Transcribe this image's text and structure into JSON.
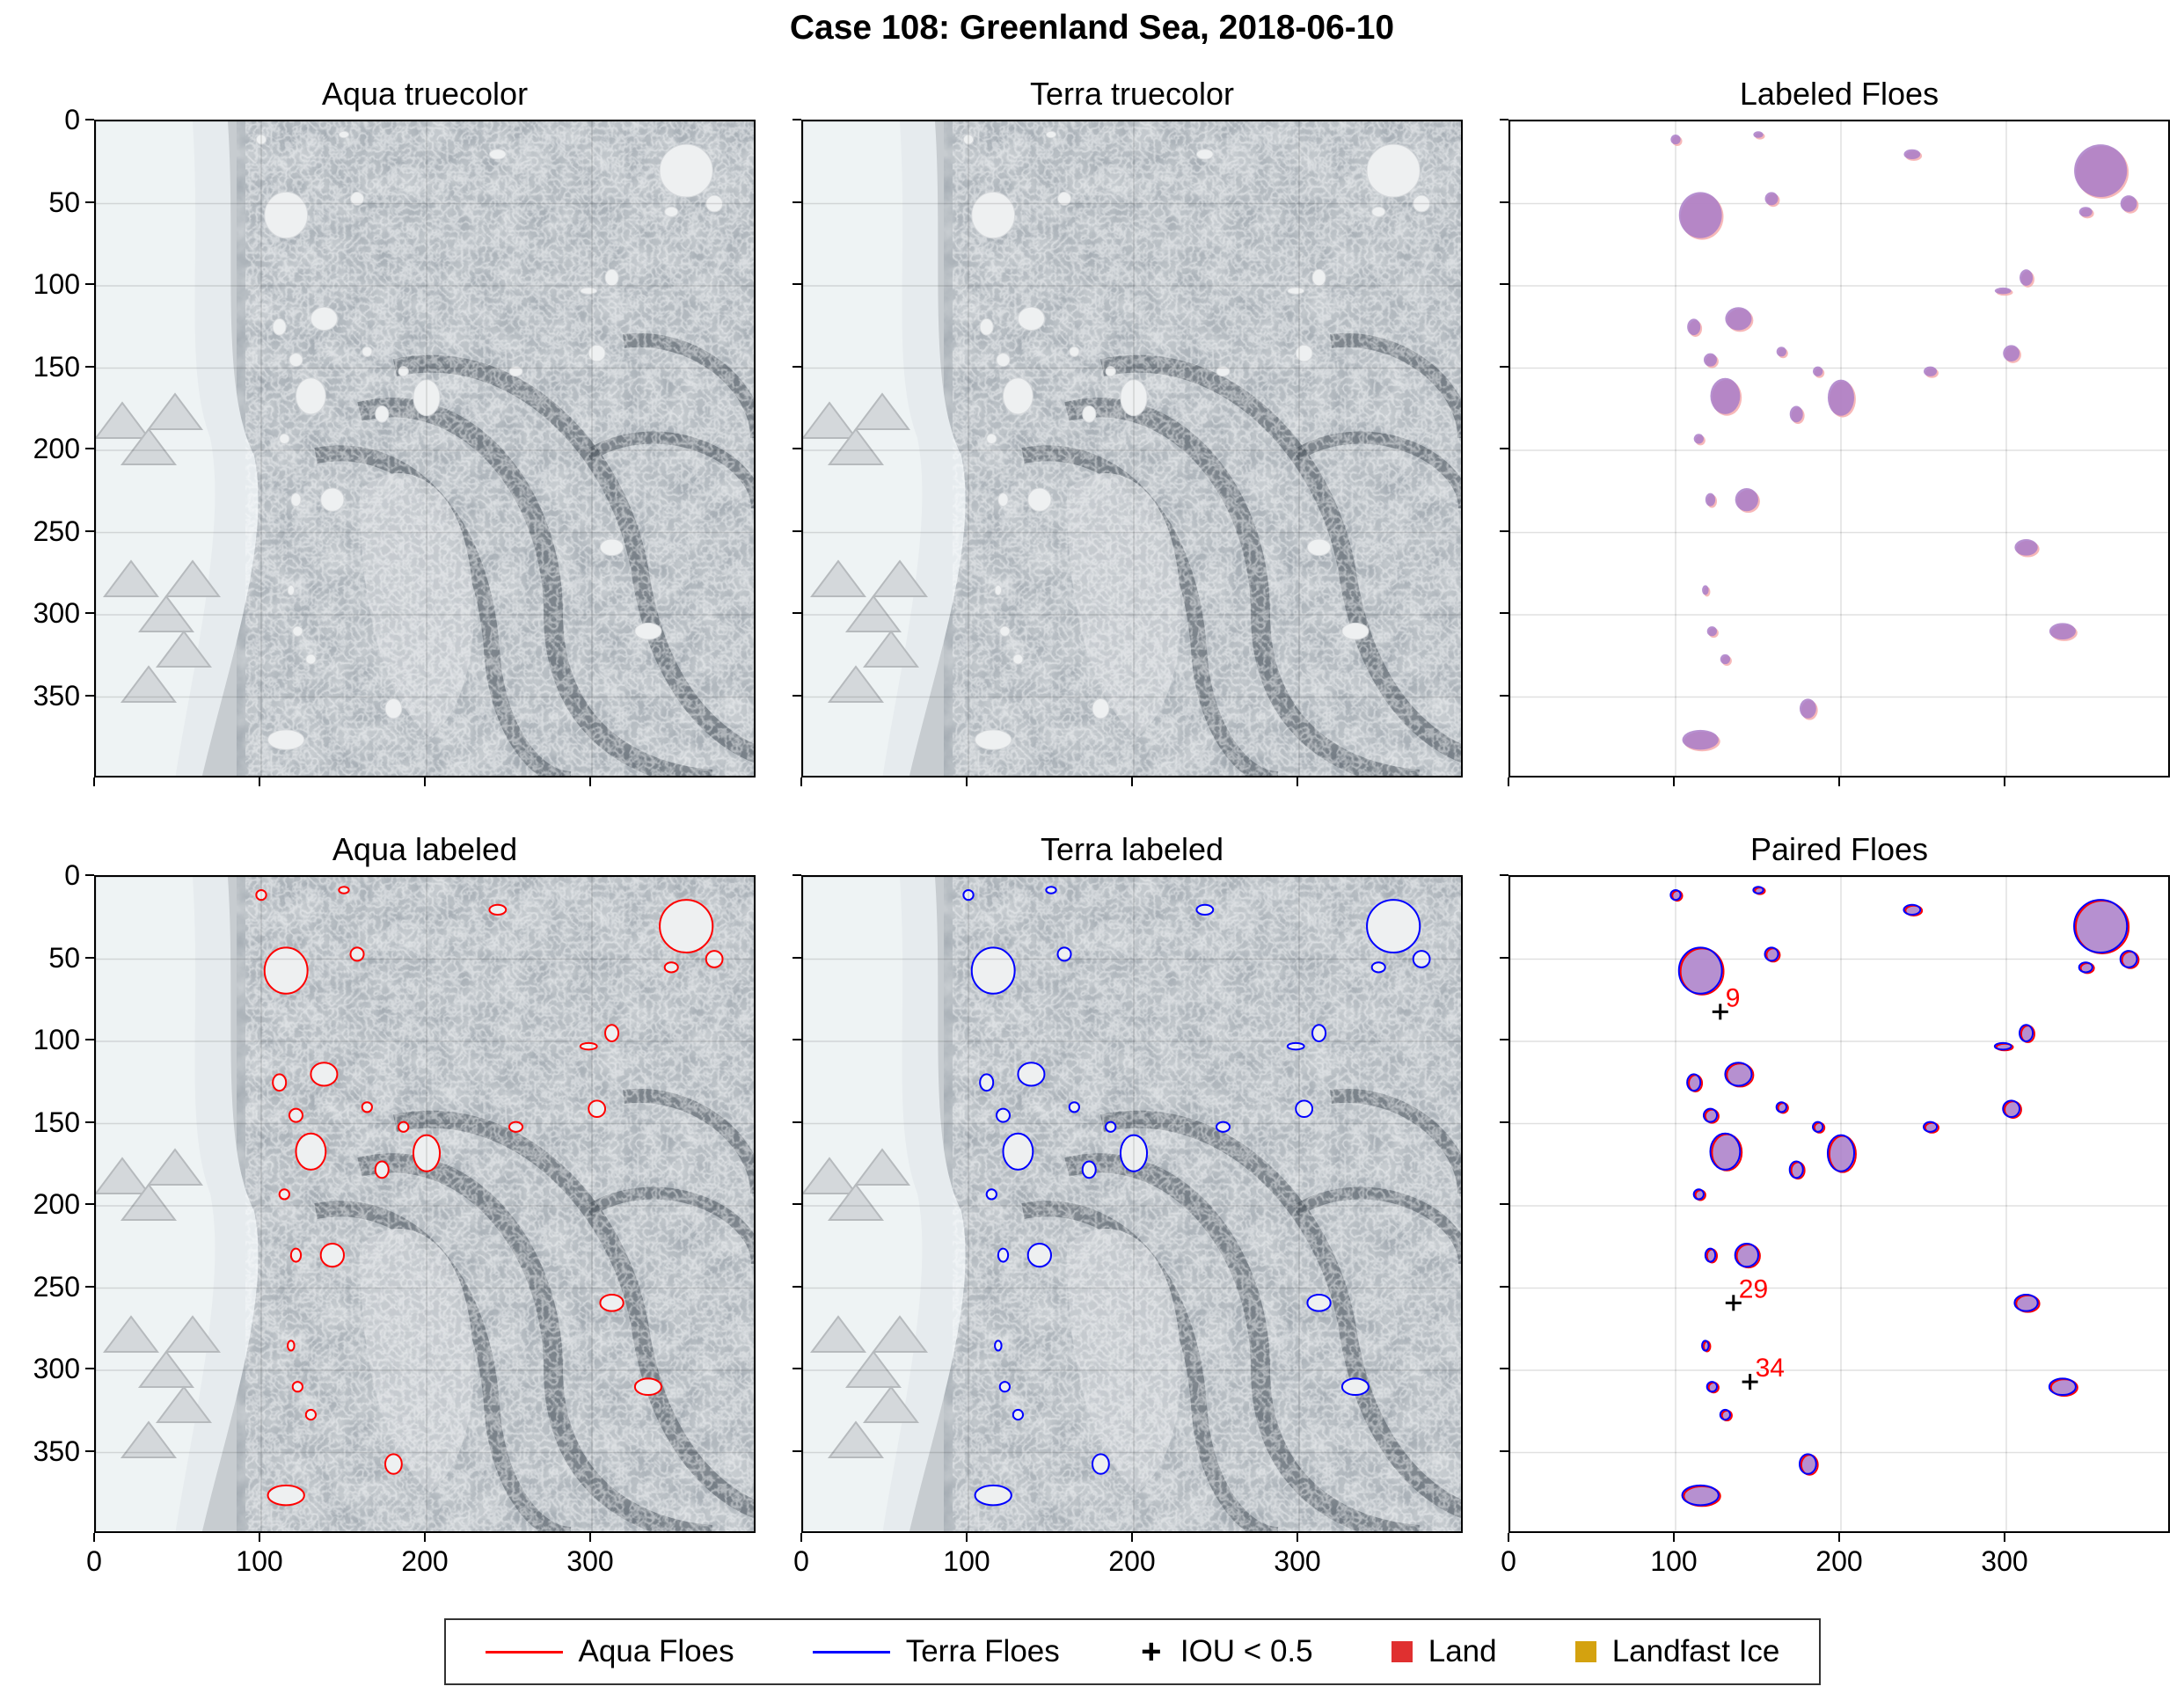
{
  "figure": {
    "suptitle": "Case 108: Greenland Sea, 2018-06-10"
  },
  "panels": [
    {
      "id": "aqua-truecolor",
      "title": "Aqua truecolor",
      "kind": "image"
    },
    {
      "id": "terra-truecolor",
      "title": "Terra truecolor",
      "kind": "image"
    },
    {
      "id": "labeled-floes",
      "title": "Labeled Floes",
      "kind": "masks"
    },
    {
      "id": "aqua-labeled",
      "title": "Aqua labeled",
      "kind": "image-aqua"
    },
    {
      "id": "terra-labeled",
      "title": "Terra labeled",
      "kind": "image-terra"
    },
    {
      "id": "paired-floes",
      "title": "Paired Floes",
      "kind": "paired"
    }
  ],
  "axes": {
    "x_ticks": [
      "0",
      "100",
      "200",
      "300"
    ],
    "y_ticks": [
      "0",
      "50",
      "100",
      "150",
      "200",
      "250",
      "300",
      "350"
    ],
    "x_values": [
      0,
      100,
      200,
      300
    ],
    "y_values": [
      0,
      50,
      100,
      150,
      200,
      250,
      300,
      350
    ],
    "xlim": [
      0,
      400
    ],
    "ylim": [
      400,
      0
    ]
  },
  "paired_labels": [
    {
      "text": "9",
      "x": 127,
      "y": 82
    },
    {
      "text": "29",
      "x": 135,
      "y": 259
    },
    {
      "text": "34",
      "x": 145,
      "y": 307
    }
  ],
  "legend": {
    "items": [
      {
        "label": "Aqua Floes",
        "kind": "line",
        "color": "#ff0000"
      },
      {
        "label": "Terra Floes",
        "kind": "line",
        "color": "#0000ff"
      },
      {
        "label": "IOU < 0.5",
        "kind": "marker",
        "color": "#000000"
      },
      {
        "label": "Land",
        "kind": "square",
        "color": "#e03030"
      },
      {
        "label": "Landfast Ice",
        "kind": "square",
        "color": "#d4a20f"
      }
    ]
  },
  "colors": {
    "aqua_floe": "#ff0000",
    "terra_floe": "#0000ff",
    "overlap_fill": "#a97dc8",
    "aqua_fill": "#f5a6a6",
    "terra_fill": "#b4b4f5"
  },
  "chart_data": {
    "type": "scatter",
    "x_values": [
      127,
      135,
      145
    ],
    "y_values": [
      82,
      259,
      307
    ],
    "point_labels": [
      "9",
      "29",
      "34"
    ],
    "xlim": [
      0,
      400
    ],
    "ylim": [
      400,
      0
    ],
    "floes": [
      {
        "x": 115,
        "y": 57,
        "w": 26,
        "h": 28
      },
      {
        "x": 357,
        "y": 30,
        "w": 32,
        "h": 32
      },
      {
        "x": 130,
        "y": 167,
        "w": 18,
        "h": 22
      },
      {
        "x": 200,
        "y": 168,
        "w": 16,
        "h": 22
      },
      {
        "x": 138,
        "y": 120,
        "w": 16,
        "h": 14
      },
      {
        "x": 143,
        "y": 230,
        "w": 14,
        "h": 14
      },
      {
        "x": 334,
        "y": 310,
        "w": 16,
        "h": 10
      },
      {
        "x": 312,
        "y": 259,
        "w": 14,
        "h": 10
      },
      {
        "x": 115,
        "y": 376,
        "w": 22,
        "h": 12
      },
      {
        "x": 180,
        "y": 357,
        "w": 10,
        "h": 12
      },
      {
        "x": 303,
        "y": 141,
        "w": 10,
        "h": 10
      },
      {
        "x": 374,
        "y": 50,
        "w": 10,
        "h": 10
      },
      {
        "x": 243,
        "y": 20,
        "w": 10,
        "h": 6
      },
      {
        "x": 158,
        "y": 47,
        "w": 8,
        "h": 8
      },
      {
        "x": 111,
        "y": 125,
        "w": 8,
        "h": 10
      },
      {
        "x": 121,
        "y": 145,
        "w": 8,
        "h": 8
      },
      {
        "x": 173,
        "y": 178,
        "w": 8,
        "h": 10
      },
      {
        "x": 114,
        "y": 193,
        "w": 6,
        "h": 6
      },
      {
        "x": 121,
        "y": 230,
        "w": 6,
        "h": 8
      },
      {
        "x": 254,
        "y": 152,
        "w": 8,
        "h": 6
      },
      {
        "x": 312,
        "y": 95,
        "w": 8,
        "h": 10
      },
      {
        "x": 298,
        "y": 103,
        "w": 10,
        "h": 4
      },
      {
        "x": 348,
        "y": 55,
        "w": 8,
        "h": 6
      },
      {
        "x": 100,
        "y": 11,
        "w": 6,
        "h": 6
      },
      {
        "x": 150,
        "y": 8,
        "w": 6,
        "h": 4
      },
      {
        "x": 122,
        "y": 310,
        "w": 6,
        "h": 6
      },
      {
        "x": 130,
        "y": 327,
        "w": 6,
        "h": 6
      },
      {
        "x": 118,
        "y": 285,
        "w": 4,
        "h": 6
      },
      {
        "x": 186,
        "y": 152,
        "w": 6,
        "h": 6
      },
      {
        "x": 164,
        "y": 140,
        "w": 6,
        "h": 6
      }
    ]
  }
}
